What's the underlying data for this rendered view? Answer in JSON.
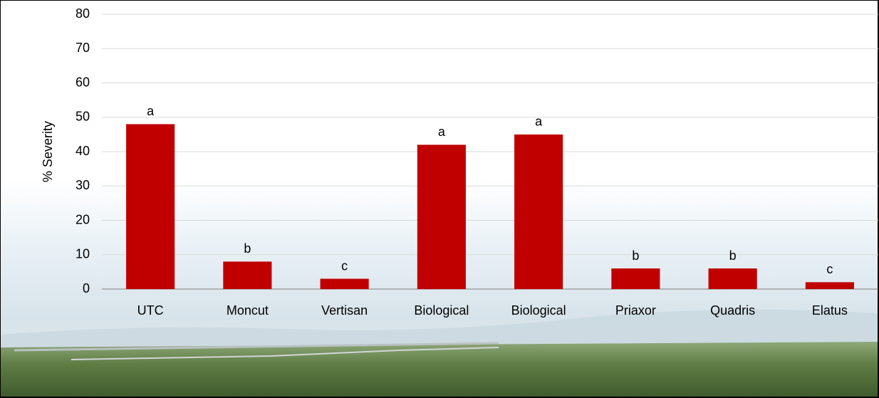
{
  "chart_data": {
    "type": "bar",
    "y_label": "% Severity",
    "categories": [
      "UTC",
      "Moncut",
      "Vertisan",
      "Biological",
      "Biological",
      "Priaxor",
      "Quadris",
      "Elatus"
    ],
    "values": [
      48,
      8,
      3,
      42,
      45,
      6,
      6,
      2
    ],
    "letters": [
      "a",
      "b",
      "c",
      "a",
      "a",
      "b",
      "b",
      "c"
    ],
    "color": "#c00000",
    "ylim": [
      0,
      80
    ],
    "yticks": [
      0,
      10,
      20,
      30,
      40,
      50,
      60,
      70,
      80
    ],
    "grid": true
  }
}
